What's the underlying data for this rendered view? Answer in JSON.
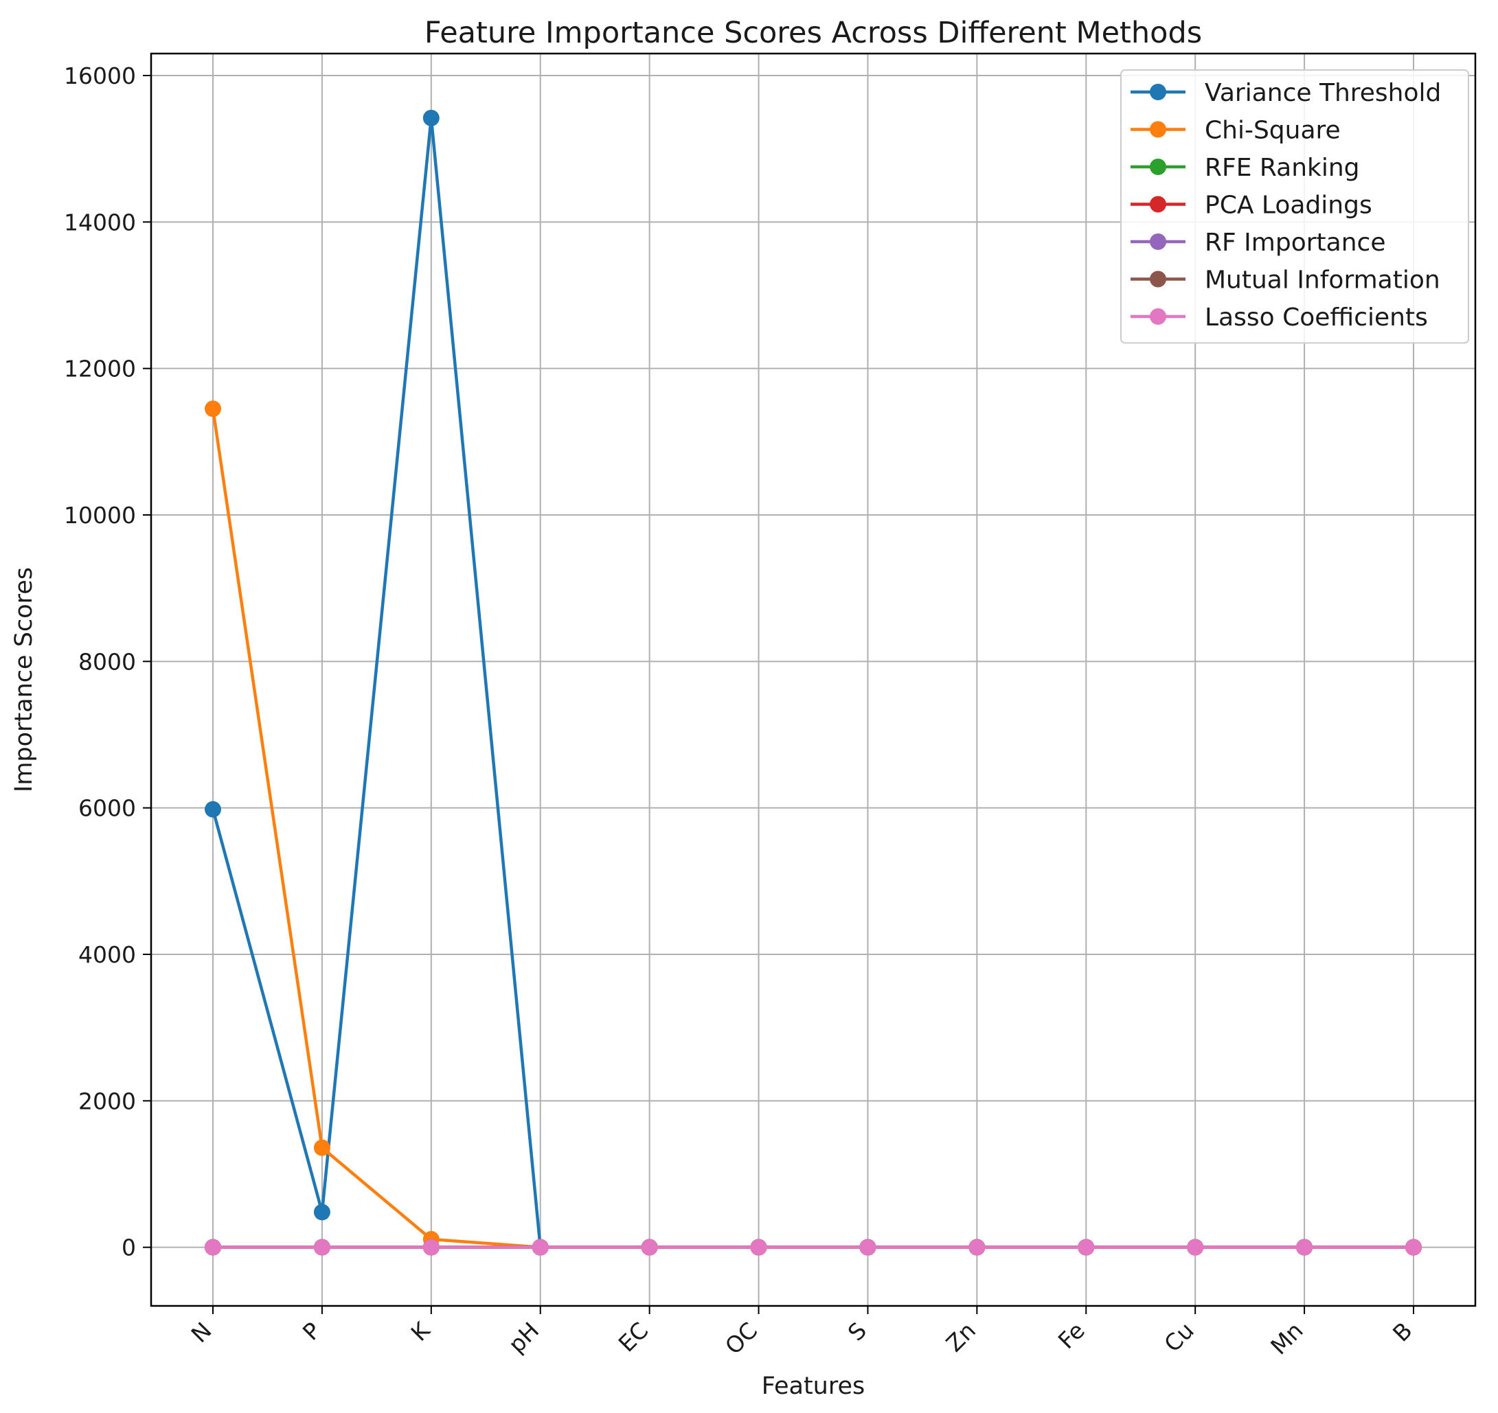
{
  "chart_data": {
    "type": "line",
    "title": "Feature Importance Scores Across Different Methods",
    "xlabel": "Features",
    "ylabel": "Importance Scores",
    "categories": [
      "N",
      "P",
      "K",
      "pH",
      "EC",
      "OC",
      "S",
      "Zn",
      "Fe",
      "Cu",
      "Mn",
      "B"
    ],
    "ylim": [
      -800,
      16300
    ],
    "yticks": [
      0,
      2000,
      4000,
      6000,
      8000,
      10000,
      12000,
      14000,
      16000
    ],
    "grid": true,
    "legend_position": "top-right",
    "series": [
      {
        "name": "Variance Threshold",
        "color": "#1f77b4",
        "values": [
          5980,
          480,
          15420,
          0,
          0,
          0,
          0,
          0,
          0,
          0,
          0,
          0
        ]
      },
      {
        "name": "Chi-Square",
        "color": "#ff7f0e",
        "values": [
          11450,
          1360,
          110,
          0,
          0,
          0,
          0,
          0,
          0,
          0,
          0,
          0
        ]
      },
      {
        "name": "RFE Ranking",
        "color": "#2ca02c",
        "values": [
          1,
          1,
          1,
          1,
          1,
          1,
          1,
          1,
          1,
          1,
          1,
          1
        ]
      },
      {
        "name": "PCA Loadings",
        "color": "#d62728",
        "values": [
          0.3,
          0.3,
          0.3,
          0.3,
          0.3,
          0.3,
          0.3,
          0.3,
          0.3,
          0.3,
          0.3,
          0.3
        ]
      },
      {
        "name": "RF Importance",
        "color": "#9467bd",
        "values": [
          0.1,
          0.1,
          0.1,
          0.1,
          0.1,
          0.1,
          0.1,
          0.1,
          0.1,
          0.1,
          0.1,
          0.1
        ]
      },
      {
        "name": "Mutual Information",
        "color": "#8c564b",
        "values": [
          0.5,
          0.5,
          0.5,
          0.5,
          0.5,
          0.5,
          0.5,
          0.5,
          0.5,
          0.5,
          0.5,
          0.5
        ]
      },
      {
        "name": "Lasso Coefficients",
        "color": "#e377c2",
        "values": [
          0,
          0,
          0,
          0,
          0,
          0,
          0,
          0,
          0,
          0,
          0,
          0
        ]
      }
    ]
  }
}
